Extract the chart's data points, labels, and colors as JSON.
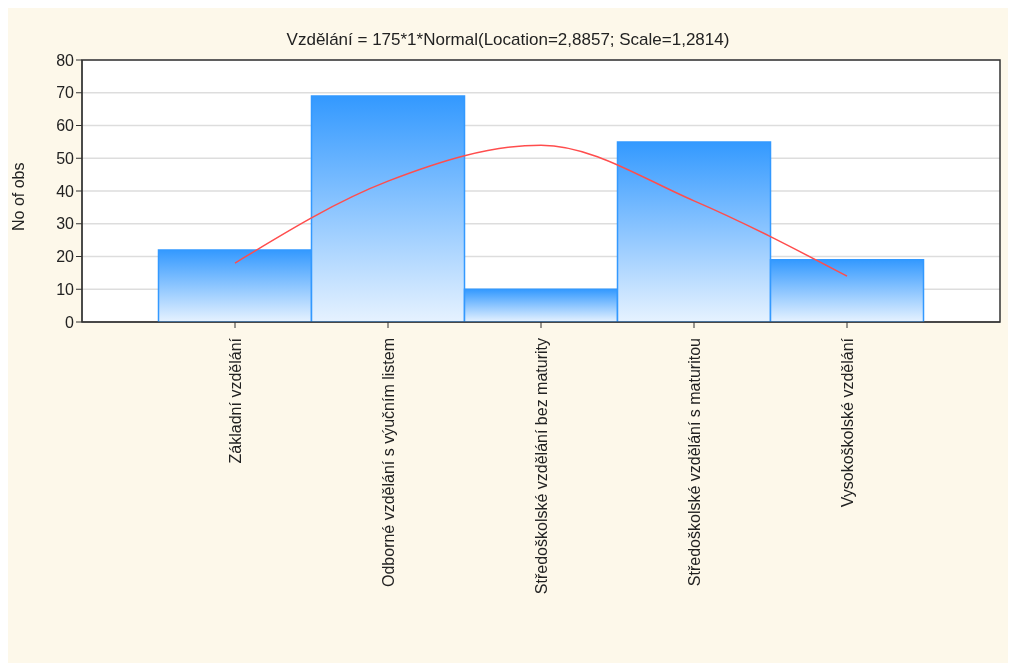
{
  "chart_data": {
    "type": "bar",
    "subtitle": "Vzdělání = 175*1*Normal(Location=2,8857; Scale=1,2814)",
    "ylabel": "No of obs",
    "categories": [
      "Základní vzdělání",
      "Odborné vzdělání s výučním listem",
      "Středoškolské vzdělání bez maturity",
      "Středoškolské vzdělání s maturitou",
      "Vysokoškolské vzdělání"
    ],
    "series": [
      {
        "color": "#3399ff",
        "values": [
          22,
          69,
          10,
          55,
          19
        ]
      },
      {
        "type": "line",
        "color": "#ff4d4d",
        "values": [
          18,
          43,
          54,
          37,
          14
        ]
      }
    ],
    "ylim": [
      0,
      80
    ],
    "yticks": [
      0,
      10,
      20,
      30,
      40,
      50,
      60,
      70,
      80
    ],
    "grid": "y",
    "marker": "none",
    "line_style": "solid"
  }
}
